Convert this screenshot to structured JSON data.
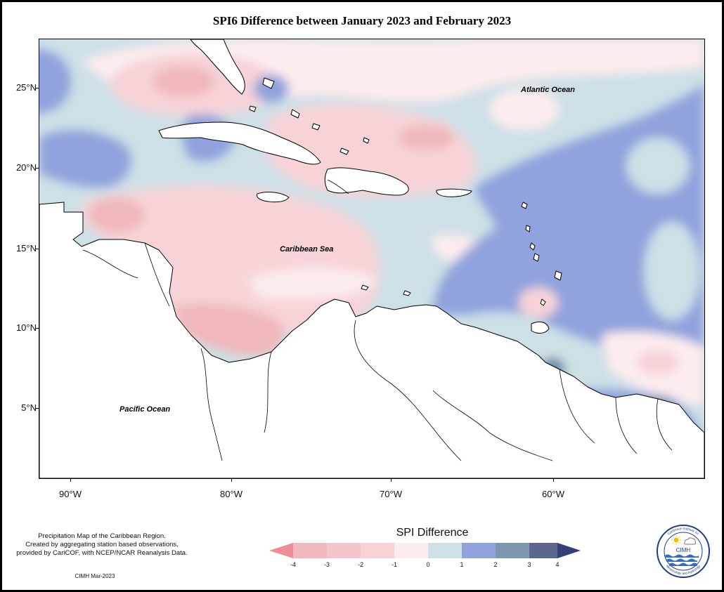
{
  "title": "SPI6 Difference between January 2023 and February 2023",
  "map": {
    "y_axis_labels": [
      "25°N",
      "20°N",
      "15°N",
      "10°N",
      "5°N"
    ],
    "x_axis_labels": [
      "90°W",
      "80°W",
      "70°W",
      "60°W"
    ],
    "place_labels": {
      "atlantic": "Atlantic Ocean",
      "caribbean": "Caribbean Sea",
      "pacific": "Pacific Ocean"
    },
    "colors": {
      "minus4": "#f08c94",
      "minus3": "#f0b8bc",
      "minus2": "#f7d3d8",
      "minus1": "#fdecee",
      "zero": "#cde0e6",
      "plus1": "#90a3dd",
      "plus2": "#7d98ae",
      "plus3": "#5b678f",
      "plus4": "#343f78"
    }
  },
  "legend": {
    "title": "SPI Difference",
    "ticks": [
      "-4",
      "-3",
      "-2",
      "-1",
      "0",
      "1",
      "2",
      "3",
      "4"
    ]
  },
  "footer": {
    "note_lines": [
      "Precipitation Map of the Caribbean Region.",
      "Created by aggregating station based observations,",
      "provided by CariCOF, with NCEP/NCAR Reanalysis Data."
    ],
    "credit": "CIMH Mar-2023"
  },
  "logo": {
    "acronym": "CIMH",
    "ring_text_top": "Caribbean Institute for",
    "ring_text_bottom": "Meteorology and Hydrology"
  }
}
